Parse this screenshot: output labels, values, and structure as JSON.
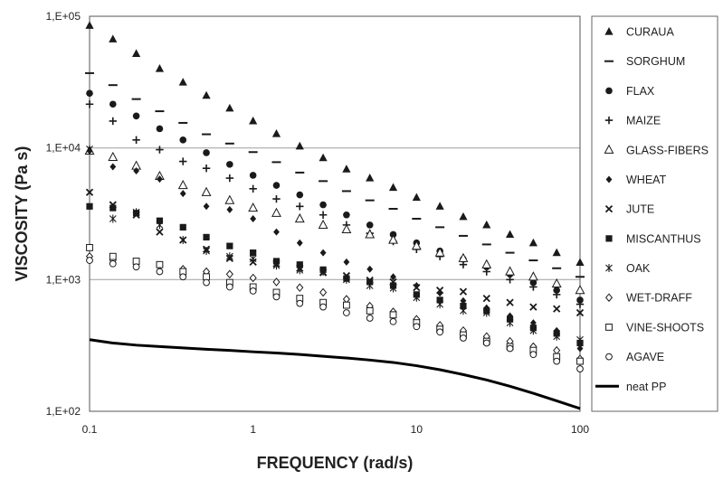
{
  "chart_data": {
    "type": "scatter",
    "title": "",
    "xlabel": "FREQUENCY (rad/s)",
    "ylabel": "VISCOSITY (Pa s)",
    "xscale": "log",
    "yscale": "log",
    "xlim": [
      0.1,
      100
    ],
    "ylim": [
      100,
      100000
    ],
    "x_ticks": [
      0.1,
      1,
      10,
      100
    ],
    "x_tick_labels": [
      "0.1",
      "1",
      "10",
      "100"
    ],
    "y_ticks": [
      100,
      1000,
      10000,
      100000
    ],
    "y_tick_labels": [
      "1,E+02",
      "1,E+03",
      "1,E+04",
      "1,E+05"
    ],
    "grid": "horizontal major lines",
    "legend_position": "right, outside plot",
    "x": [
      0.1,
      0.1389,
      0.193,
      0.2683,
      0.3728,
      0.518,
      0.7197,
      1.0,
      1.3895,
      1.9307,
      2.6827,
      3.7276,
      5.1795,
      7.1969,
      10.0,
      13.895,
      19.307,
      26.827,
      37.276,
      51.795,
      71.969,
      100.0
    ],
    "series": [
      {
        "name": "CURAUA",
        "marker": "triangle-filled",
        "values": [
          85000,
          67000,
          52000,
          40000,
          31500,
          25000,
          20000,
          16000,
          12800,
          10300,
          8400,
          6900,
          5900,
          5000,
          4200,
          3600,
          3000,
          2600,
          2200,
          1900,
          1600,
          1350
        ]
      },
      {
        "name": "SORGHUM",
        "marker": "dash",
        "values": [
          37000,
          30000,
          23500,
          19000,
          15500,
          12700,
          10800,
          9300,
          7800,
          6500,
          5600,
          4700,
          4000,
          3450,
          2900,
          2500,
          2150,
          1850,
          1600,
          1400,
          1220,
          1050
        ]
      },
      {
        "name": "FLAX",
        "marker": "circle-filled",
        "values": [
          26000,
          21500,
          17500,
          14000,
          11500,
          9200,
          7500,
          6200,
          5200,
          4400,
          3700,
          3100,
          2600,
          2200,
          1900,
          1650,
          1430,
          1250,
          1100,
          950,
          830,
          700
        ]
      },
      {
        "name": "MAIZE",
        "marker": "plus",
        "values": [
          21500,
          16000,
          11500,
          9700,
          7900,
          7000,
          5900,
          4900,
          4100,
          3600,
          3100,
          2600,
          2250,
          1950,
          1700,
          1500,
          1300,
          1150,
          1000,
          880,
          770,
          650
        ]
      },
      {
        "name": "GLASS-FIBERS",
        "marker": "triangle-open",
        "values": [
          9500,
          8500,
          7300,
          6100,
          5200,
          4600,
          4000,
          3500,
          3200,
          2900,
          2600,
          2400,
          2200,
          2000,
          1800,
          1600,
          1450,
          1300,
          1150,
          1050,
          930,
          830
        ]
      },
      {
        "name": "WHEAT",
        "marker": "diamond-filled",
        "values": [
          9500,
          7200,
          6700,
          5800,
          4500,
          3600,
          3400,
          2900,
          2300,
          1900,
          1600,
          1360,
          1200,
          1050,
          900,
          790,
          690,
          610,
          530,
          470,
          410,
          300
        ]
      },
      {
        "name": "JUTE",
        "marker": "x",
        "values": [
          4600,
          3700,
          3100,
          2300,
          2000,
          1700,
          1450,
          1360,
          1320,
          1220,
          1130,
          1070,
          990,
          960,
          870,
          830,
          810,
          720,
          670,
          620,
          600,
          560
        ]
      },
      {
        "name": "MISCANTHUS",
        "marker": "square-filled",
        "values": [
          3600,
          3500,
          3200,
          2800,
          2500,
          2100,
          1800,
          1600,
          1380,
          1300,
          1190,
          1020,
          960,
          900,
          770,
          700,
          630,
          580,
          500,
          430,
          390,
          330
        ]
      },
      {
        "name": "OAK",
        "marker": "asterisk",
        "values": [
          9800,
          2900,
          3250,
          2600,
          2000,
          1650,
          1500,
          1440,
          1280,
          1180,
          1150,
          1000,
          900,
          860,
          730,
          650,
          580,
          560,
          470,
          410,
          370,
          350
        ]
      },
      {
        "name": "WET-DRAFF",
        "marker": "diamond-open",
        "values": [
          1500,
          1400,
          1350,
          1280,
          1200,
          1150,
          1100,
          1030,
          960,
          870,
          800,
          710,
          630,
          570,
          500,
          450,
          410,
          370,
          340,
          310,
          290,
          250
        ]
      },
      {
        "name": "VINE-SHOOTS",
        "marker": "square-open",
        "values": [
          1750,
          1500,
          1380,
          1300,
          1150,
          1050,
          950,
          880,
          800,
          720,
          670,
          640,
          580,
          540,
          470,
          420,
          380,
          340,
          310,
          290,
          260,
          240
        ]
      },
      {
        "name": "AGAVE",
        "marker": "circle-open",
        "values": [
          1400,
          1320,
          1250,
          1150,
          1050,
          950,
          880,
          820,
          740,
          660,
          620,
          560,
          510,
          480,
          440,
          400,
          360,
          330,
          300,
          270,
          240,
          210
        ]
      },
      {
        "name": "neat PP",
        "marker": "line",
        "values": [
          350,
          330,
          318,
          310,
          303,
          296,
          290,
          283,
          277,
          270,
          262,
          254,
          245,
          235,
          222,
          207,
          190,
          173,
          155,
          137,
          120,
          105
        ]
      }
    ]
  }
}
